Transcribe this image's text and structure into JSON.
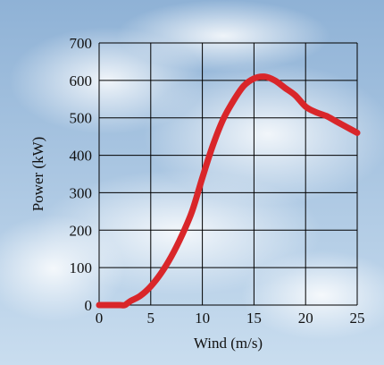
{
  "colors": {
    "curve": "#d9262a",
    "grid": "#000000",
    "sky_top": "#8fb2d6",
    "sky_bottom": "#c9ddef"
  },
  "chart_data": {
    "type": "line",
    "title": "",
    "xlabel": "Wind (m/s)",
    "ylabel": "Power (kW)",
    "xlim": [
      0,
      25
    ],
    "ylim": [
      0,
      700
    ],
    "x_ticks": [
      0,
      5,
      10,
      15,
      20,
      25
    ],
    "y_ticks": [
      0,
      100,
      200,
      300,
      400,
      500,
      600,
      700
    ],
    "grid": true,
    "background": "sky photo",
    "series": [
      {
        "x": [
          0,
          1,
          2,
          2.5,
          3,
          4,
          5,
          6,
          7,
          8,
          9,
          10,
          11,
          12,
          13,
          14,
          15,
          16,
          17,
          18,
          19,
          20,
          21,
          22,
          23,
          24,
          25
        ],
        "y": [
          0,
          0,
          0,
          0,
          10,
          25,
          50,
          85,
          130,
          185,
          250,
          340,
          425,
          495,
          545,
          585,
          605,
          610,
          600,
          580,
          560,
          530,
          515,
          505,
          490,
          475,
          460
        ]
      }
    ]
  }
}
